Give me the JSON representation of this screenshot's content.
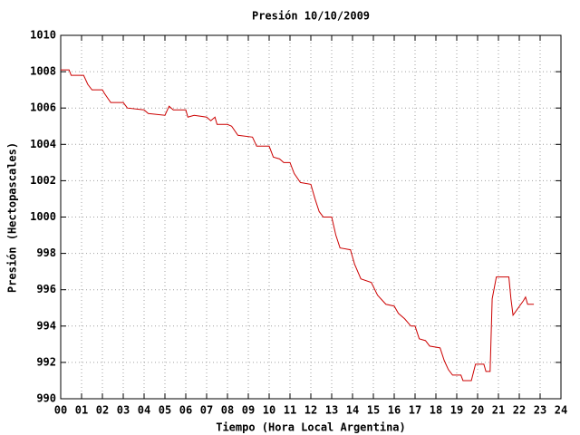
{
  "chart_data": {
    "type": "line",
    "title": "Presión 10/10/2009",
    "x_label": "Tiempo (Hora Local Argentina)",
    "y_label": "Presión (Hectopascales)",
    "grid": true,
    "xlim": [
      0,
      24
    ],
    "xticks": [
      {
        "value": 0,
        "label": "00"
      },
      {
        "value": 1,
        "label": "01"
      },
      {
        "value": 2,
        "label": "02"
      },
      {
        "value": 3,
        "label": "03"
      },
      {
        "value": 4,
        "label": "04"
      },
      {
        "value": 5,
        "label": "05"
      },
      {
        "value": 6,
        "label": "06"
      },
      {
        "value": 7,
        "label": "07"
      },
      {
        "value": 8,
        "label": "08"
      },
      {
        "value": 9,
        "label": "09"
      },
      {
        "value": 10,
        "label": "10"
      },
      {
        "value": 11,
        "label": "11"
      },
      {
        "value": 12,
        "label": "12"
      },
      {
        "value": 13,
        "label": "13"
      },
      {
        "value": 14,
        "label": "14"
      },
      {
        "value": 15,
        "label": "15"
      },
      {
        "value": 16,
        "label": "16"
      },
      {
        "value": 17,
        "label": "17"
      },
      {
        "value": 18,
        "label": "18"
      },
      {
        "value": 19,
        "label": "19"
      },
      {
        "value": 20,
        "label": "20"
      },
      {
        "value": 21,
        "label": "21"
      },
      {
        "value": 22,
        "label": "22"
      },
      {
        "value": 23,
        "label": "23"
      },
      {
        "value": 24,
        "label": "24"
      }
    ],
    "ylim": [
      990,
      1010
    ],
    "yticks": [
      990,
      992,
      994,
      996,
      998,
      1000,
      1002,
      1004,
      1006,
      1008,
      1010
    ],
    "series": [
      {
        "color": "#cc0000",
        "x": [
          0,
          0.4,
          0.5,
          1.1,
          1.3,
          1.5,
          2.0,
          2.1,
          2.4,
          3.0,
          3.2,
          4.0,
          4.2,
          5.0,
          5.2,
          5.4,
          6.0,
          6.1,
          6.4,
          7.0,
          7.2,
          7.4,
          7.5,
          8.0,
          8.2,
          8.5,
          9.2,
          9.4,
          10.0,
          10.2,
          10.5,
          10.7,
          11.0,
          11.2,
          11.5,
          12.0,
          12.2,
          12.4,
          12.6,
          13.0,
          13.2,
          13.4,
          13.9,
          14.1,
          14.4,
          14.9,
          15.2,
          15.6,
          16.0,
          16.2,
          16.5,
          16.8,
          17.0,
          17.2,
          17.5,
          17.7,
          18.2,
          18.4,
          18.6,
          18.8,
          19.2,
          19.3,
          19.7,
          19.9,
          20.3,
          20.4,
          20.6,
          20.7,
          20.9,
          21.5,
          21.6,
          21.7,
          22.2,
          22.3,
          22.4,
          22.7
        ],
        "values": [
          1008.1,
          1008.1,
          1007.8,
          1007.8,
          1007.3,
          1007.0,
          1007.0,
          1006.8,
          1006.3,
          1006.3,
          1006.0,
          1005.9,
          1005.7,
          1005.6,
          1006.1,
          1005.9,
          1005.9,
          1005.5,
          1005.6,
          1005.5,
          1005.3,
          1005.5,
          1005.1,
          1005.1,
          1005.0,
          1004.5,
          1004.4,
          1003.9,
          1003.9,
          1003.3,
          1003.2,
          1003.0,
          1003.0,
          1002.4,
          1001.9,
          1001.8,
          1001.0,
          1000.3,
          1000.0,
          1000.0,
          999.0,
          998.3,
          998.2,
          997.4,
          996.6,
          996.4,
          995.7,
          995.2,
          995.1,
          994.7,
          994.4,
          994.0,
          994.0,
          993.3,
          993.2,
          992.9,
          992.8,
          992.1,
          991.6,
          991.3,
          991.3,
          991.0,
          991.0,
          991.9,
          991.9,
          991.5,
          991.5,
          995.5,
          996.7,
          996.7,
          995.5,
          994.6,
          995.4,
          995.6,
          995.2,
          995.2
        ]
      }
    ]
  }
}
